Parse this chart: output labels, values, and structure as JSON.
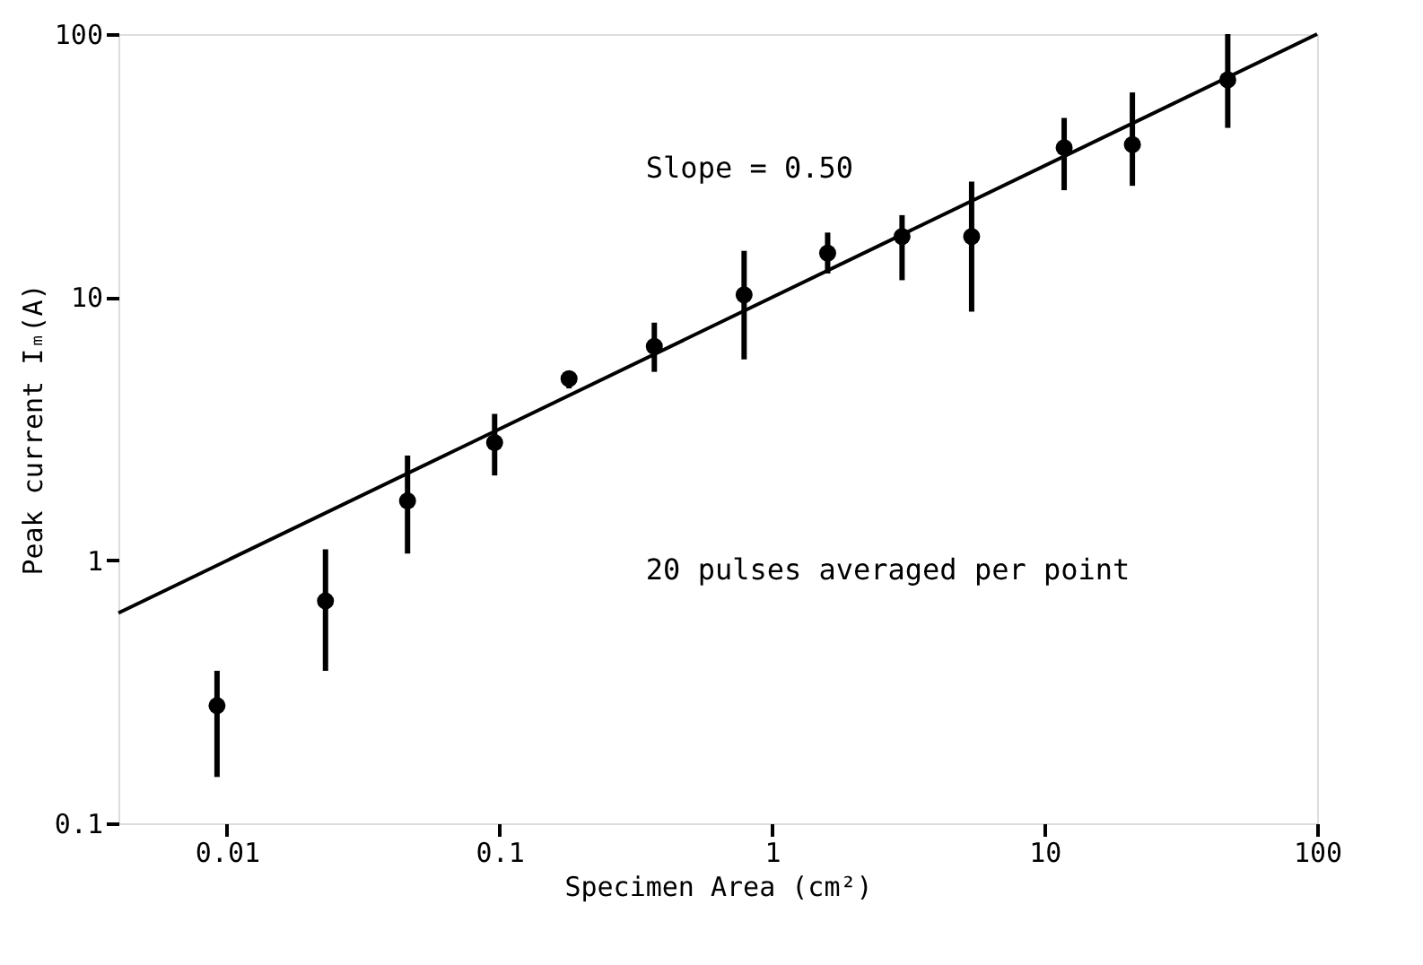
{
  "chart_data": {
    "type": "scatter",
    "xlabel": "Specimen Area (cm²)",
    "ylabel": "Peak current Iₘ(A)",
    "log": "xy",
    "xlim": [
      0.004,
      100
    ],
    "ylim": [
      0.1,
      100
    ],
    "xticks": [
      0.01,
      0.1,
      1,
      10,
      100
    ],
    "yticks": [
      0.1,
      1,
      10,
      100
    ],
    "grid": false,
    "x": [
      0.0092,
      0.023,
      0.046,
      0.096,
      0.18,
      0.37,
      0.79,
      1.6,
      3.0,
      5.4,
      11.8,
      21,
      47
    ],
    "series": [
      {
        "color": "#000000",
        "marker": "circle",
        "values": [
          0.28,
          0.7,
          1.68,
          2.8,
          4.9,
          6.5,
          10.2,
          14.7,
          17,
          17,
          37,
          38,
          67
        ],
        "errors": [
          [
            0.15,
            0.38
          ],
          [
            0.38,
            1.1
          ],
          [
            1.06,
            2.5
          ],
          [
            2.1,
            3.6
          ],
          [
            4.5,
            5.2
          ],
          [
            5.2,
            8.0
          ],
          [
            5.8,
            15
          ],
          [
            12.3,
            17.6
          ],
          [
            11.6,
            20.5
          ],
          [
            8.8,
            27.5
          ],
          [
            25.5,
            48
          ],
          [
            26.5,
            60
          ],
          [
            44,
            100
          ]
        ]
      },
      {
        "type": "line",
        "color": "#000000",
        "line_style": "solid",
        "x": [
          0.004,
          100
        ],
        "values": [
          0.63,
          100
        ]
      }
    ],
    "annotations": [
      "Slope = 0.50",
      "20 pulses averaged per point"
    ]
  }
}
